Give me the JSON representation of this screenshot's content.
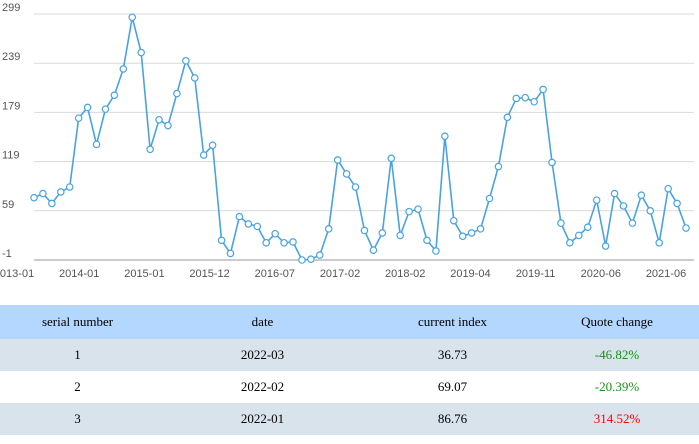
{
  "chart_data": {
    "type": "line",
    "title": "",
    "xlabel": "",
    "ylabel": "",
    "ylim": [
      -1,
      299
    ],
    "y_ticks": [
      "-1",
      "59",
      "119",
      "179",
      "239",
      "299"
    ],
    "x_ticks": [
      "2013-01",
      "2014-01",
      "2015-01",
      "2015-12",
      "2016-07",
      "2017-02",
      "2018-02",
      "2019-04",
      "2019-11",
      "2020-06",
      "2021-06"
    ],
    "grid": "horizontal",
    "colors": {
      "line": "#4aa3df",
      "marker_fill": "#ffffff"
    },
    "series": [
      {
        "values": [
          75,
          80,
          68,
          82,
          88,
          172,
          185,
          140,
          183,
          200,
          232,
          295,
          252,
          134,
          170,
          163,
          202,
          242,
          221,
          127,
          139,
          23,
          7,
          52,
          43,
          40,
          20,
          31,
          20,
          21,
          -1,
          0,
          5,
          37,
          121,
          104,
          88,
          35,
          11,
          32,
          123,
          29,
          58,
          61,
          23,
          10,
          150,
          47,
          28,
          32,
          37,
          74,
          113,
          173,
          196,
          197,
          192,
          207,
          118,
          44,
          20,
          29,
          39,
          72,
          16,
          80,
          65,
          44,
          78,
          59,
          20,
          86,
          68,
          38
        ]
      }
    ]
  },
  "table": {
    "headers": [
      "serial number",
      "date",
      "current index",
      "Quote change"
    ],
    "rows": [
      {
        "serial": "1",
        "date": "2022-03",
        "index": "36.73",
        "change": "-46.82%",
        "change_color": "#1a8f1a"
      },
      {
        "serial": "2",
        "date": "2022-02",
        "index": "69.07",
        "change": "-20.39%",
        "change_color": "#1a8f1a"
      },
      {
        "serial": "3",
        "date": "2022-01",
        "index": "86.76",
        "change": "314.52%",
        "change_color": "#ff0000"
      }
    ]
  }
}
